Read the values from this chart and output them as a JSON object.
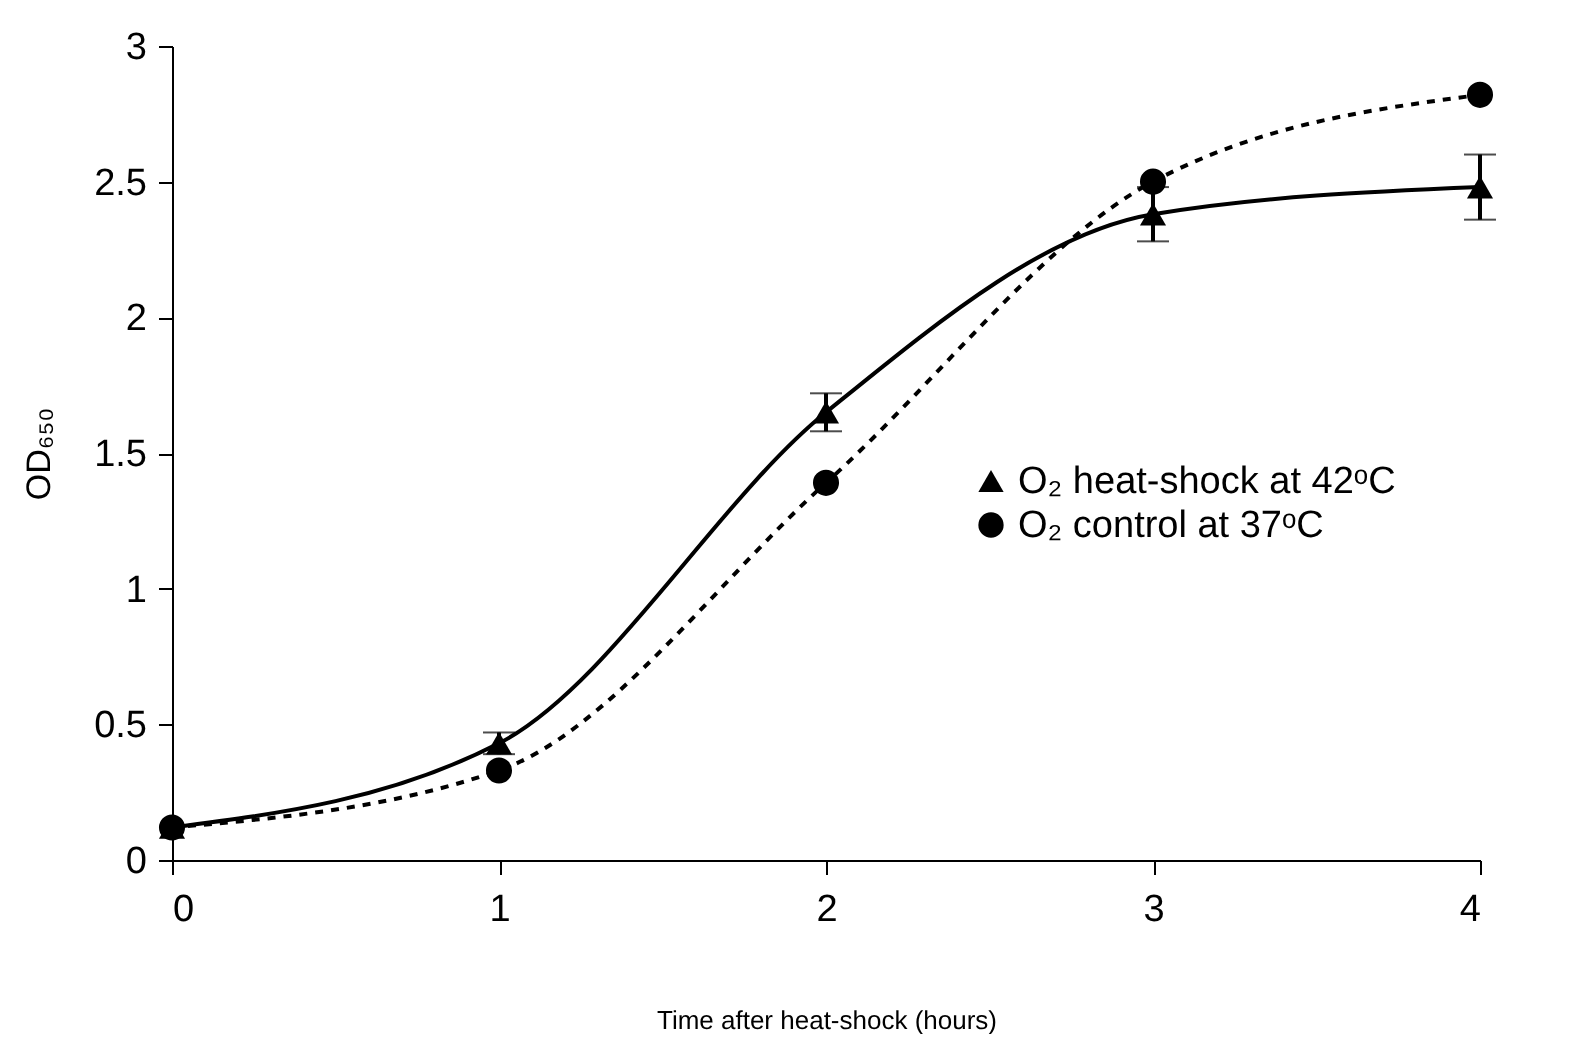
{
  "chart_data": {
    "type": "line",
    "xlabel": "Time after heat-shock (hours)",
    "ylabel": "OD₆₅₀",
    "x": [
      0,
      1,
      2,
      3,
      4
    ],
    "series": [
      {
        "name": "O₂ heat-shock at 42ᵒC",
        "color": "#000000",
        "values": [
          0.12,
          0.43,
          1.65,
          2.38,
          2.48
        ],
        "errors": [
          null,
          0.04,
          0.07,
          0.1,
          0.12
        ],
        "marker": "triangle",
        "line_style": "solid"
      },
      {
        "name": "O₂ control at 37ᵒC",
        "color": "#000000",
        "values": [
          0.12,
          0.33,
          1.39,
          2.5,
          2.82
        ],
        "marker": "circle",
        "line_style": "dashed"
      }
    ],
    "xlim": [
      0,
      4
    ],
    "xticks": [
      0,
      1,
      2,
      3,
      4
    ],
    "ylim": [
      0,
      3
    ],
    "yticks": [
      0,
      0.5,
      1,
      1.5,
      2,
      2.5,
      3
    ],
    "grid": false,
    "legend": "right"
  }
}
